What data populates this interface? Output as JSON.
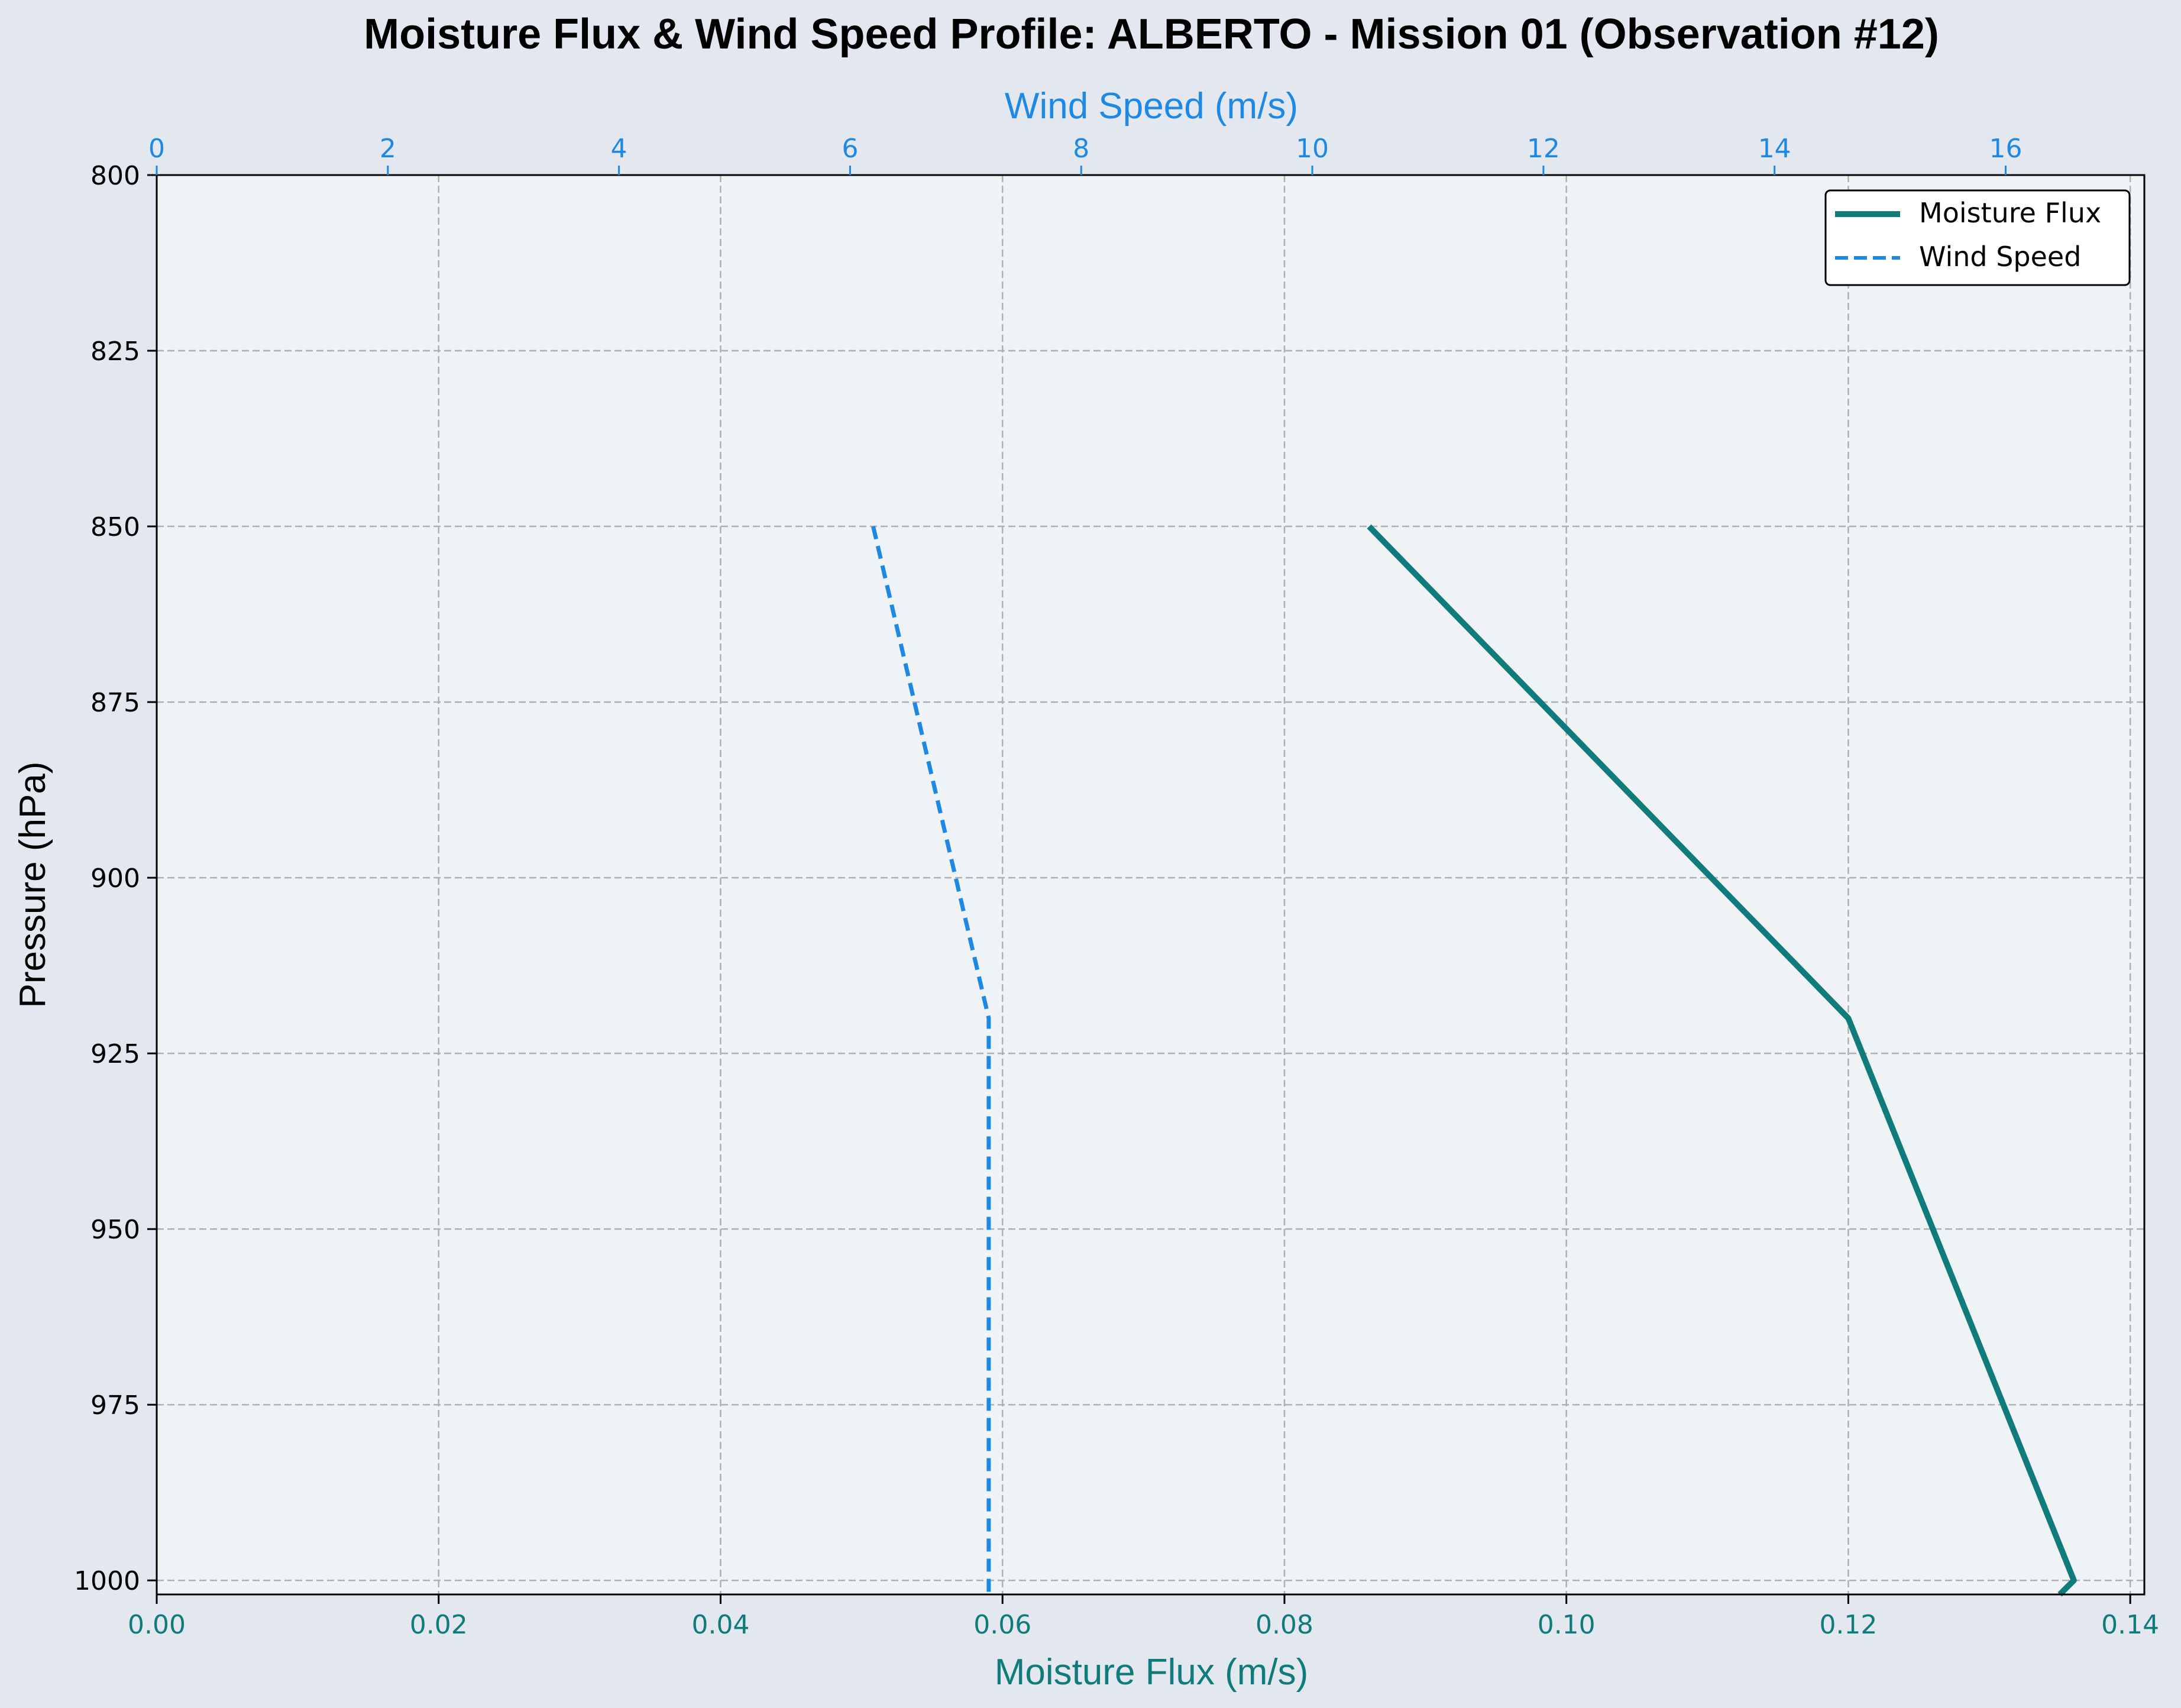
{
  "chart_data": {
    "type": "line",
    "title": "Moisture Flux & Wind Speed Profile: ALBERTO - Mission 01 (Observation #12)",
    "ylabel": "Pressure (hPa)",
    "xlabel_bottom": "Moisture Flux (m/s)",
    "xlabel_top": "Wind Speed (m/s)",
    "y_inverted": true,
    "ylim": [
      1002,
      800
    ],
    "yticks": [
      800,
      825,
      850,
      875,
      900,
      925,
      950,
      975,
      1000
    ],
    "xlim_bottom": [
      0.0,
      0.141
    ],
    "xticks_bottom": [
      "0.00",
      "0.02",
      "0.04",
      "0.06",
      "0.08",
      "0.10",
      "0.12",
      "0.14"
    ],
    "xlim_top": [
      0,
      17.2
    ],
    "xticks_top": [
      "0",
      "2",
      "4",
      "6",
      "8",
      "10",
      "12",
      "14",
      "16"
    ],
    "grid": true,
    "legend_position": "top-right",
    "series": [
      {
        "name": "Moisture Flux",
        "axis": "bottom",
        "color": "#0f7b7b",
        "style": "solid",
        "points": [
          {
            "x": 0.086,
            "y": 850
          },
          {
            "x": 0.12,
            "y": 920
          },
          {
            "x": 0.136,
            "y": 1000
          },
          {
            "x": 0.135,
            "y": 1002
          }
        ]
      },
      {
        "name": "Wind Speed",
        "axis": "top",
        "color": "#1e88e5",
        "style": "dashed",
        "points": [
          {
            "x": 6.2,
            "y": 850
          },
          {
            "x": 7.2,
            "y": 920
          },
          {
            "x": 7.2,
            "y": 1002
          }
        ]
      }
    ]
  },
  "colors": {
    "figure_bg": "#e3e7ef",
    "plot_bg": "#eff3f6",
    "flux_axis": "#0f7b7b",
    "wind_axis": "#1e88e5",
    "grid": "#b0b0b0"
  }
}
